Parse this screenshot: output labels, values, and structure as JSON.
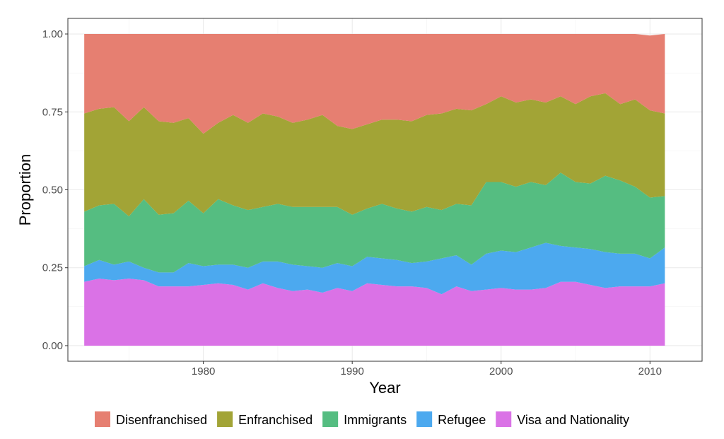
{
  "chart_data": {
    "type": "area",
    "stacked": true,
    "normalized": true,
    "xlabel": "Year",
    "ylabel": "Proportion",
    "xlim": [
      1970.9,
      2013.5
    ],
    "ylim": [
      -0.05,
      1.05
    ],
    "x_ticks": [
      1980,
      1990,
      2000,
      2010
    ],
    "y_ticks": [
      0,
      0.25,
      0.5,
      0.75,
      1.0
    ],
    "x_tick_labels": [
      "1980",
      "1990",
      "2000",
      "2010"
    ],
    "y_tick_labels": [
      "0.00",
      "0.25",
      "0.50",
      "0.75",
      "1.00"
    ],
    "grid": true,
    "legend_position": "bottom",
    "x": [
      1972,
      1973,
      1974,
      1975,
      1976,
      1977,
      1978,
      1979,
      1980,
      1981,
      1982,
      1983,
      1984,
      1985,
      1986,
      1987,
      1988,
      1989,
      1990,
      1991,
      1992,
      1993,
      1994,
      1995,
      1996,
      1997,
      1998,
      1999,
      2000,
      2001,
      2002,
      2003,
      2004,
      2005,
      2006,
      2007,
      2008,
      2009,
      2010,
      2011
    ],
    "series": [
      {
        "name": "Visa and Nationality",
        "color": "#DA72E6",
        "values": [
          0.205,
          0.215,
          0.21,
          0.215,
          0.21,
          0.19,
          0.19,
          0.19,
          0.195,
          0.2,
          0.195,
          0.18,
          0.2,
          0.185,
          0.175,
          0.18,
          0.17,
          0.185,
          0.175,
          0.2,
          0.195,
          0.19,
          0.19,
          0.185,
          0.165,
          0.19,
          0.175,
          0.18,
          0.185,
          0.18,
          0.18,
          0.185,
          0.205,
          0.205,
          0.195,
          0.185,
          0.19,
          0.19,
          0.19,
          0.2
        ]
      },
      {
        "name": "Refugee",
        "color": "#4CA9EF",
        "values": [
          0.05,
          0.06,
          0.05,
          0.055,
          0.04,
          0.045,
          0.045,
          0.075,
          0.06,
          0.06,
          0.065,
          0.07,
          0.07,
          0.085,
          0.085,
          0.075,
          0.08,
          0.08,
          0.08,
          0.085,
          0.085,
          0.085,
          0.075,
          0.085,
          0.115,
          0.1,
          0.085,
          0.115,
          0.12,
          0.12,
          0.135,
          0.145,
          0.115,
          0.11,
          0.115,
          0.115,
          0.105,
          0.105,
          0.09,
          0.115
        ]
      },
      {
        "name": "Immigrants",
        "color": "#55BD81",
        "values": [
          0.175,
          0.175,
          0.195,
          0.145,
          0.22,
          0.185,
          0.19,
          0.2,
          0.17,
          0.21,
          0.19,
          0.185,
          0.175,
          0.185,
          0.185,
          0.19,
          0.195,
          0.18,
          0.165,
          0.155,
          0.175,
          0.165,
          0.165,
          0.175,
          0.155,
          0.165,
          0.19,
          0.23,
          0.22,
          0.21,
          0.21,
          0.185,
          0.235,
          0.21,
          0.21,
          0.245,
          0.235,
          0.215,
          0.195,
          0.165
        ]
      },
      {
        "name": "Enfranchised",
        "color": "#A2A436",
        "values": [
          0.315,
          0.31,
          0.31,
          0.305,
          0.295,
          0.3,
          0.29,
          0.265,
          0.255,
          0.245,
          0.29,
          0.28,
          0.3,
          0.28,
          0.27,
          0.28,
          0.295,
          0.26,
          0.275,
          0.27,
          0.27,
          0.285,
          0.29,
          0.295,
          0.31,
          0.305,
          0.305,
          0.25,
          0.275,
          0.27,
          0.265,
          0.265,
          0.245,
          0.25,
          0.28,
          0.265,
          0.245,
          0.28,
          0.28,
          0.265
        ]
      },
      {
        "name": "Disenfranchised",
        "color": "#E67F71",
        "values": [
          0.255,
          0.24,
          0.235,
          0.28,
          0.235,
          0.28,
          0.285,
          0.27,
          0.32,
          0.285,
          0.26,
          0.285,
          0.255,
          0.265,
          0.285,
          0.275,
          0.26,
          0.295,
          0.305,
          0.29,
          0.275,
          0.275,
          0.28,
          0.26,
          0.255,
          0.24,
          0.245,
          0.225,
          0.2,
          0.22,
          0.21,
          0.22,
          0.2,
          0.225,
          0.2,
          0.19,
          0.225,
          0.21,
          0.24,
          0.255
        ]
      }
    ],
    "legend_order": [
      "Disenfranchised",
      "Enfranchised",
      "Immigrants",
      "Refugee",
      "Visa and Nationality"
    ]
  }
}
